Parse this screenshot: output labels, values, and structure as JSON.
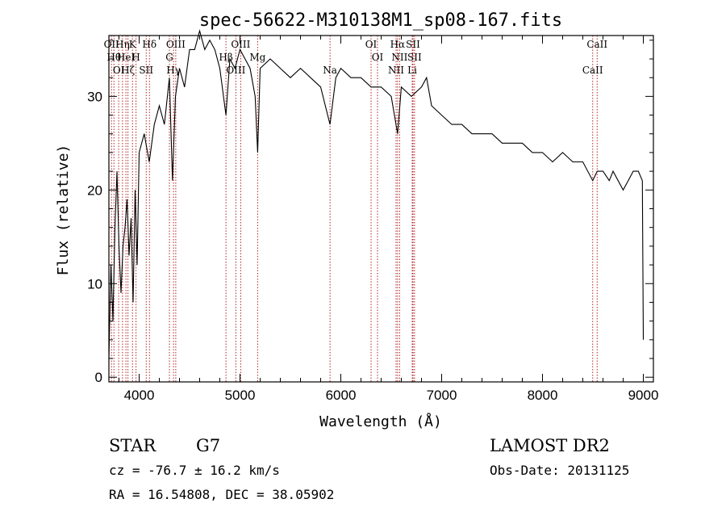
{
  "chart_data": {
    "type": "line",
    "title": "spec-56622-M310138M1_sp08-167.fits",
    "xlabel": "Wavelength (Å)",
    "ylabel": "Flux (relative)",
    "xlim": [
      3700,
      9100
    ],
    "ylim": [
      -0.5,
      36.5
    ],
    "xticks": [
      4000,
      5000,
      6000,
      7000,
      8000,
      9000
    ],
    "yticks": [
      0,
      10,
      20,
      30
    ],
    "series": [
      {
        "x": [
          3700,
          3720,
          3740,
          3760,
          3780,
          3800,
          3820,
          3840,
          3860,
          3880,
          3900,
          3920,
          3940,
          3960,
          3980,
          4000,
          4050,
          4100,
          4150,
          4200,
          4250,
          4300,
          4330,
          4360,
          4400,
          4450,
          4500,
          4550,
          4600,
          4650,
          4700,
          4750,
          4800,
          4861,
          4900,
          4950,
          5000,
          5050,
          5100,
          5150,
          5175,
          5200,
          5300,
          5400,
          5500,
          5600,
          5700,
          5800,
          5893,
          5950,
          6000,
          6100,
          6200,
          6300,
          6400,
          6500,
          6563,
          6600,
          6700,
          6800,
          6850,
          6900,
          7000,
          7100,
          7200,
          7300,
          7400,
          7500,
          7600,
          7700,
          7800,
          7900,
          8000,
          8100,
          8200,
          8300,
          8400,
          8498,
          8542,
          8600,
          8662,
          8700,
          8800,
          8850,
          8900,
          8950,
          8990,
          9000
        ],
        "y": [
          2,
          12,
          6,
          16,
          22,
          14,
          9,
          14,
          16,
          19,
          13,
          17,
          8,
          20,
          12,
          24,
          26,
          23,
          27,
          29,
          27,
          32,
          21,
          30,
          33,
          31,
          35,
          35,
          37,
          35,
          36,
          35,
          33,
          28,
          34,
          33,
          35,
          34,
          33,
          30,
          24,
          33,
          34,
          33,
          32,
          33,
          32,
          31,
          27,
          32,
          33,
          32,
          32,
          31,
          31,
          30,
          26,
          31,
          30,
          31,
          32,
          29,
          28,
          27,
          27,
          26,
          26,
          26,
          25,
          25,
          25,
          24,
          24,
          23,
          24,
          23,
          23,
          21,
          22,
          22,
          21,
          22,
          20,
          21,
          22,
          22,
          21,
          4
        ]
      }
    ],
    "line_markers": [
      {
        "x": 3726,
        "label": "OII"
      },
      {
        "x": 3750,
        "label": "Hθ"
      },
      {
        "x": 3797,
        "label": "OI"
      },
      {
        "x": 3835,
        "label": "Hη"
      },
      {
        "x": 3869,
        "label": "HeI"
      },
      {
        "x": 3889,
        "label": "Hζ"
      },
      {
        "x": 3934,
        "label": "K"
      },
      {
        "x": 3969,
        "label": "H"
      },
      {
        "x": 4070,
        "label": "SII"
      },
      {
        "x": 4102,
        "label": "Hδ"
      },
      {
        "x": 4300,
        "label": "G"
      },
      {
        "x": 4341,
        "label": "Hγ"
      },
      {
        "x": 4363,
        "label": "OIII"
      },
      {
        "x": 4861,
        "label": "Hβ"
      },
      {
        "x": 4959,
        "label": "OIII"
      },
      {
        "x": 5007,
        "label": "OIII"
      },
      {
        "x": 5175,
        "label": "Mg"
      },
      {
        "x": 5893,
        "label": "Na"
      },
      {
        "x": 6300,
        "label": "OI"
      },
      {
        "x": 6364,
        "label": "OI"
      },
      {
        "x": 6548,
        "label": "NII"
      },
      {
        "x": 6563,
        "label": "Hα"
      },
      {
        "x": 6583,
        "label": "NII"
      },
      {
        "x": 6708,
        "label": "Li"
      },
      {
        "x": 6716,
        "label": "SII"
      },
      {
        "x": 6731,
        "label": "SII"
      },
      {
        "x": 8498,
        "label": "CaII"
      },
      {
        "x": 8542,
        "label": "CaII"
      }
    ],
    "grid": false,
    "legend": "none"
  },
  "info": {
    "class": "STAR",
    "subclass": "G7",
    "survey": "LAMOST DR2",
    "cz": "cz = -76.7 ± 16.2 km/s",
    "obs_date": "Obs-Date: 20131125",
    "radec": "RA =  16.54808, DEC =  38.05902"
  },
  "colors": {
    "spectrum": "#000000",
    "marker": "#b22222"
  }
}
